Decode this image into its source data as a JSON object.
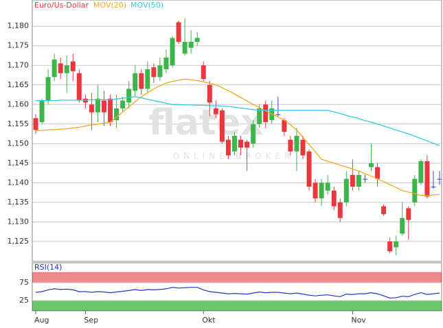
{
  "chart_data": {
    "type": "candlestick",
    "title": "Euro/Us-Dollar",
    "watermark": "flatex",
    "watermark_sub": "ONLINE BROKER",
    "categories": [
      "Aug",
      null,
      null,
      null,
      null,
      null,
      null,
      null,
      "Sep",
      null,
      null,
      null,
      null,
      null,
      null,
      null,
      null,
      null,
      null,
      null,
      null,
      null,
      null,
      null,
      null,
      null,
      null,
      "Okt",
      null,
      null,
      null,
      null,
      null,
      null,
      null,
      null,
      null,
      null,
      null,
      null,
      null,
      null,
      null,
      null,
      null,
      null,
      null,
      null,
      null,
      null,
      null,
      "Nov",
      null,
      null,
      null,
      null,
      null,
      null,
      null,
      null,
      null,
      null,
      null,
      null,
      null,
      null
    ],
    "up_color": "#3cb54a",
    "down_color": "#e8383d",
    "flat_color": "#3344cc",
    "open": [
      1.1565,
      1.1555,
      1.161,
      1.167,
      1.1705,
      1.168,
      1.171,
      1.168,
      1.1615,
      1.16,
      1.158,
      1.161,
      1.1615,
      1.156,
      1.159,
      1.1605,
      1.1635,
      1.168,
      1.164,
      1.1695,
      1.167,
      1.169,
      1.17,
      1.181,
      1.173,
      1.1745,
      1.176,
      1.17,
      1.165,
      1.159,
      1.1585,
      1.151,
      1.148,
      1.151,
      1.1505,
      1.15,
      1.155,
      1.16,
      1.156,
      1.1575,
      1.156,
      1.151,
      1.148,
      1.151,
      1.148,
      1.14,
      1.136,
      1.138,
      1.138,
      1.135,
      1.135,
      1.142,
      1.139,
      1.141,
      1.144,
      1.144,
      1.134,
      1.125,
      1.1235,
      1.127,
      1.1335,
      1.135,
      1.14,
      1.1455,
      1.139,
      1.141
    ],
    "high": [
      1.1575,
      1.1615,
      1.169,
      1.173,
      1.172,
      1.1725,
      1.173,
      1.169,
      1.1625,
      1.163,
      1.165,
      1.1635,
      1.1625,
      1.1625,
      1.162,
      1.166,
      1.17,
      1.169,
      1.171,
      1.1705,
      1.172,
      1.174,
      1.1775,
      1.1815,
      1.182,
      1.179,
      1.1785,
      1.171,
      1.166,
      1.161,
      1.159,
      1.152,
      1.153,
      1.152,
      1.151,
      1.156,
      1.16,
      1.161,
      1.161,
      1.162,
      1.1565,
      1.152,
      1.154,
      1.152,
      1.1485,
      1.141,
      1.141,
      1.142,
      1.139,
      1.136,
      1.143,
      1.146,
      1.143,
      1.142,
      1.15,
      1.145,
      1.1345,
      1.126,
      1.1265,
      1.135,
      1.134,
      1.142,
      1.146,
      1.147,
      1.143,
      1.143
    ],
    "low": [
      1.1525,
      1.155,
      1.16,
      1.166,
      1.1665,
      1.163,
      1.166,
      1.1605,
      1.159,
      1.1535,
      1.1555,
      1.1545,
      1.1545,
      1.154,
      1.158,
      1.159,
      1.162,
      1.1625,
      1.163,
      1.1655,
      1.166,
      1.168,
      1.1695,
      1.1755,
      1.1725,
      1.173,
      1.175,
      1.166,
      1.157,
      1.1565,
      1.15,
      1.146,
      1.147,
      1.147,
      1.143,
      1.149,
      1.154,
      1.154,
      1.155,
      1.157,
      1.152,
      1.147,
      1.143,
      1.146,
      1.138,
      1.135,
      1.134,
      1.137,
      1.133,
      1.13,
      1.134,
      1.138,
      1.138,
      1.14,
      1.143,
      1.139,
      1.1315,
      1.122,
      1.1215,
      1.1265,
      1.1255,
      1.134,
      1.1395,
      1.136,
      1.1385,
      1.1395
    ],
    "close": [
      1.1535,
      1.161,
      1.167,
      1.1715,
      1.168,
      1.17,
      1.1685,
      1.161,
      1.1605,
      1.158,
      1.1615,
      1.158,
      1.1555,
      1.159,
      1.161,
      1.164,
      1.168,
      1.164,
      1.169,
      1.167,
      1.17,
      1.172,
      1.177,
      1.176,
      1.176,
      1.176,
      1.177,
      1.1665,
      1.1605,
      1.1575,
      1.1505,
      1.147,
      1.152,
      1.149,
      1.149,
      1.155,
      1.159,
      1.1555,
      1.159,
      1.1575,
      1.153,
      1.148,
      1.152,
      1.147,
      1.139,
      1.136,
      1.14,
      1.14,
      1.134,
      1.131,
      1.141,
      1.139,
      1.142,
      1.141,
      1.145,
      1.141,
      1.132,
      1.1225,
      1.125,
      1.131,
      1.1305,
      1.141,
      1.1455,
      1.1365,
      1.139,
      1.141
    ],
    "series": [
      {
        "name": "MOV(20)",
        "color": "#f5a623",
        "values": [
          1.1533,
          1.1534,
          1.1535,
          1.1536,
          1.1537,
          1.1538,
          1.154,
          1.1542,
          1.1545,
          1.1548,
          1.155,
          1.1552,
          1.1555,
          1.1568,
          1.1581,
          1.1594,
          1.1607,
          1.162,
          1.163,
          1.164,
          1.1648,
          1.1655,
          1.1659,
          1.1662,
          1.1665,
          1.1663,
          1.1661,
          1.1658,
          1.1654,
          1.165,
          1.1643,
          1.1635,
          1.1627,
          1.1618,
          1.1609,
          1.16,
          1.1592,
          1.1584,
          1.1576,
          1.1568,
          1.156,
          1.1548,
          1.1535,
          1.1516,
          1.1498,
          1.1479,
          1.146,
          1.1455,
          1.145,
          1.1445,
          1.144,
          1.1435,
          1.143,
          1.1423,
          1.1417,
          1.141,
          1.1403,
          1.1395,
          1.1388,
          1.138,
          1.1376,
          1.1372,
          1.1368,
          1.1368,
          1.1369,
          1.137
        ]
      },
      {
        "name": "MOV(50)",
        "color": "#36c8e6",
        "values": [
          1.161,
          1.161,
          1.161,
          1.161,
          1.1611,
          1.1611,
          1.1611,
          1.1611,
          1.1611,
          1.1612,
          1.1612,
          1.1612,
          1.1612,
          1.1614,
          1.1616,
          1.1618,
          1.162,
          1.1617,
          1.1613,
          1.161,
          1.1607,
          1.1603,
          1.16,
          1.16,
          1.1599,
          1.1599,
          1.1598,
          1.1598,
          1.1597,
          1.1597,
          1.1596,
          1.1595,
          1.1593,
          1.1591,
          1.1589,
          1.1587,
          1.1585,
          1.1585,
          1.1585,
          1.1585,
          1.1585,
          1.1585,
          1.1585,
          1.1585,
          1.1585,
          1.1585,
          1.1585,
          1.1585,
          1.1581,
          1.1577,
          1.1572,
          1.1568,
          1.1564,
          1.1559,
          1.1555,
          1.155,
          1.1545,
          1.154,
          1.1535,
          1.153,
          1.1525,
          1.1519,
          1.1513,
          1.1507,
          1.1501,
          1.1495
        ]
      }
    ],
    "ylim": [
      1.1199,
      1.1867
    ],
    "yticks": [
      {
        "value": 1.125,
        "label": "1,125"
      },
      {
        "value": 1.13,
        "label": "1,130"
      },
      {
        "value": 1.135,
        "label": "1,135"
      },
      {
        "value": 1.14,
        "label": "1,140"
      },
      {
        "value": 1.145,
        "label": "1,145"
      },
      {
        "value": 1.15,
        "label": "1,150"
      },
      {
        "value": 1.155,
        "label": "1,155"
      },
      {
        "value": 1.16,
        "label": "1,160"
      },
      {
        "value": 1.165,
        "label": "1,165"
      },
      {
        "value": 1.17,
        "label": "1,170"
      },
      {
        "value": 1.175,
        "label": "1,175"
      },
      {
        "value": 1.18,
        "label": "1,180"
      }
    ],
    "grid": true,
    "indicator": {
      "name": "RSI(14)",
      "color": "#2233cc",
      "ylim": [
        -4,
        131
      ],
      "yticks": [
        25,
        75
      ],
      "overbought_color": "#f08a8a",
      "oversold_color": "#6cc86c",
      "values": [
        48,
        50,
        55,
        58,
        56,
        57,
        55,
        50,
        50,
        48,
        50,
        49,
        47,
        49,
        51,
        53,
        56,
        53,
        56,
        55,
        56,
        58,
        62,
        60,
        61,
        62,
        62,
        55,
        50,
        48,
        46,
        44,
        45,
        44,
        43,
        46,
        49,
        47,
        48,
        48,
        46,
        44,
        46,
        43,
        40,
        38,
        40,
        41,
        38,
        36,
        43,
        42,
        44,
        44,
        47,
        44,
        38,
        32,
        33,
        37,
        36,
        42,
        47,
        42,
        44,
        46
      ]
    }
  }
}
